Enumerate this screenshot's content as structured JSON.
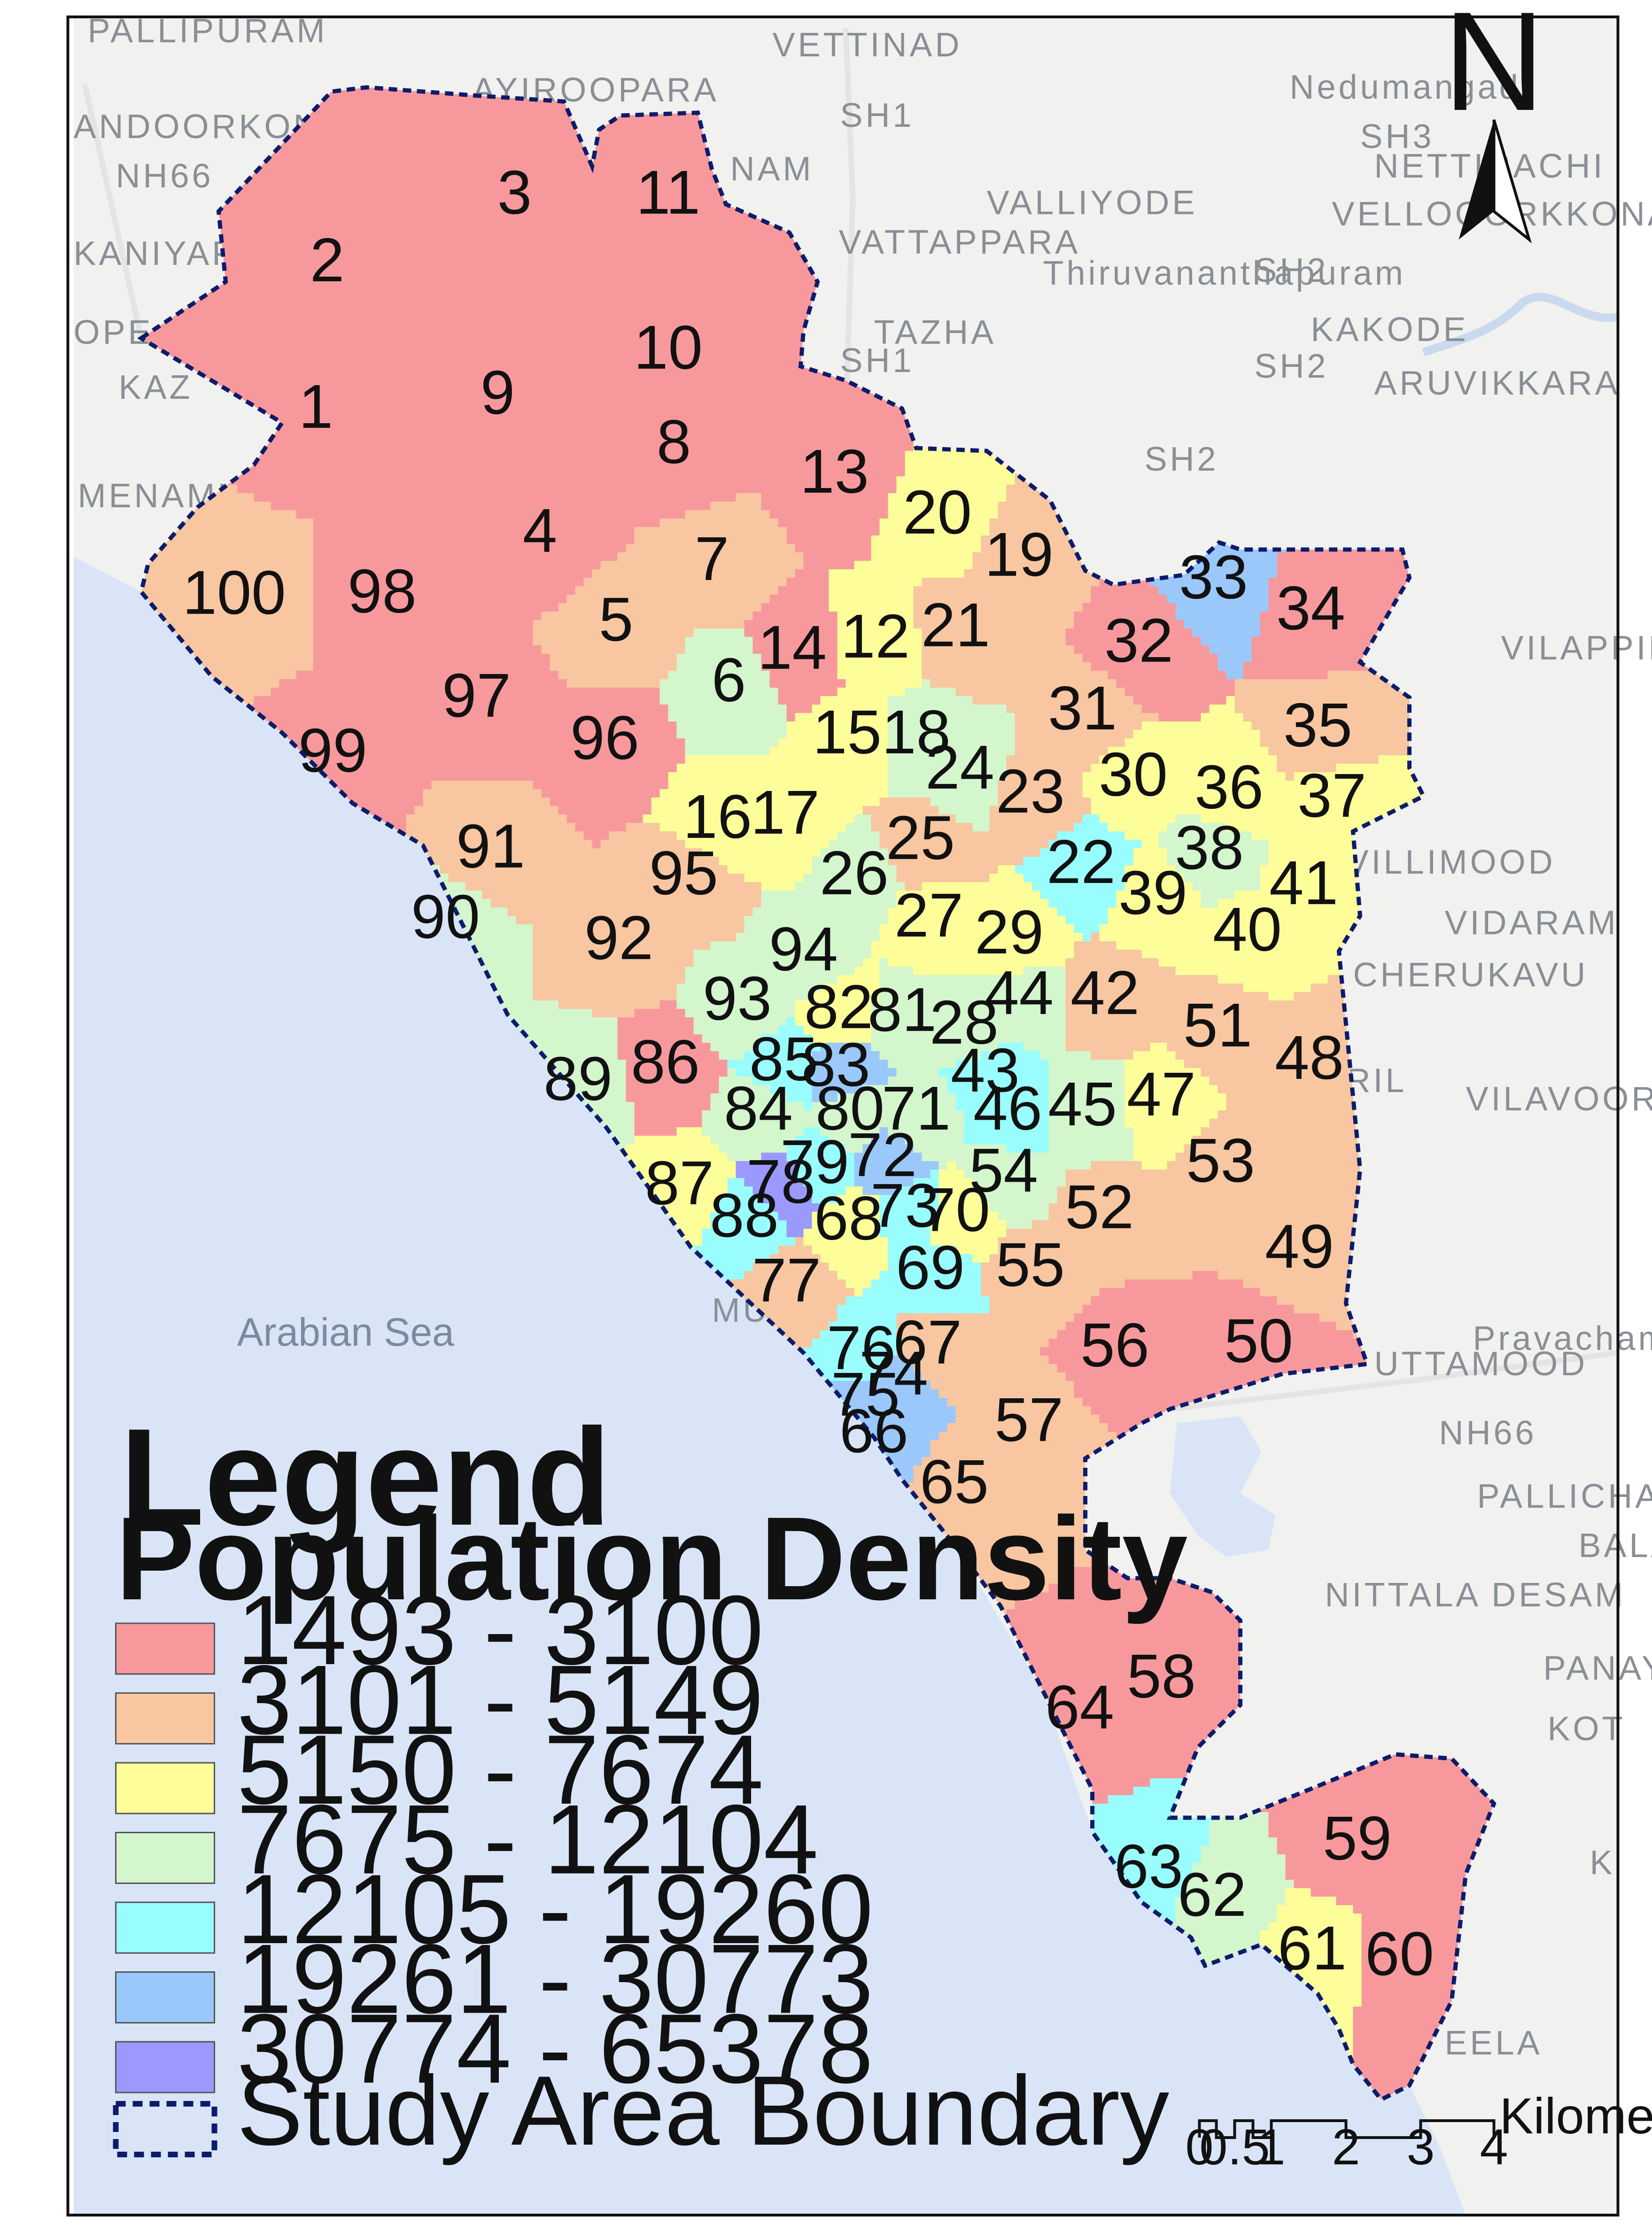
{
  "legend": {
    "title": "Legend",
    "subtitle": "Population Density",
    "classes": [
      {
        "label": "1493 - 3100",
        "color": "#f7999c"
      },
      {
        "label": "3101 - 5149",
        "color": "#f8c6a0"
      },
      {
        "label": "5150 - 7674",
        "color": "#fdfd99"
      },
      {
        "label": "7675 - 12104",
        "color": "#d3f6cd"
      },
      {
        "label": "12105 - 19260",
        "color": "#99fdfd"
      },
      {
        "label": "19261 - 30773",
        "color": "#9bc8fb"
      },
      {
        "label": "30774 - 65378",
        "color": "#9b99fd"
      }
    ],
    "boundary_label": "Study Area Boundary",
    "boundary_color": "#0c1c6c"
  },
  "north_arrow": {
    "label": "N"
  },
  "scale_bar": {
    "ticks": [
      "0",
      "0.5",
      "1",
      "2",
      "3",
      "4"
    ],
    "unit": "Kilometers"
  },
  "basemap": {
    "sea_label": "Arabian Sea",
    "sea_color": "#d9e5f7",
    "land_color": "#f1f1f0",
    "places": [
      "PALLIPURAM",
      "ANDOORKONAM",
      "AYIROOPARA",
      "VETTINAD",
      "NAM",
      "KANIYAPURAM",
      "VALLIYODE",
      "VATTAPPARA",
      "Thiruvananthapuram",
      "Nedumangad",
      "NETTIRACHI",
      "VELLOOORKKONAM",
      "KAKODE",
      "ARUVIKKARA",
      "MENAMKULAM",
      "VILAPPIL",
      "VILLIMOOD",
      "VIDARAM",
      "CHERUKAVU",
      "VILAVOORKKAL",
      "UTTAMOOD",
      "Pravachambalam",
      "PALLICHAL",
      "NITTALA DESAM",
      "PANAYA",
      "KOT",
      "K",
      "EELA",
      "TAZHA",
      "OPE",
      "KAZ",
      "RIL",
      "BALA",
      "MU",
      "SH1",
      "SH1",
      "SH2",
      "SH2",
      "SH2",
      "SH3",
      "NH66",
      "NH66"
    ]
  },
  "wards": [
    {
      "id": "1",
      "cls": 0
    },
    {
      "id": "2",
      "cls": 0
    },
    {
      "id": "3",
      "cls": 0
    },
    {
      "id": "4",
      "cls": 0
    },
    {
      "id": "5",
      "cls": 1
    },
    {
      "id": "6",
      "cls": 3
    },
    {
      "id": "7",
      "cls": 1
    },
    {
      "id": "8",
      "cls": 0
    },
    {
      "id": "9",
      "cls": 0
    },
    {
      "id": "10",
      "cls": 0
    },
    {
      "id": "11",
      "cls": 0
    },
    {
      "id": "12",
      "cls": 2
    },
    {
      "id": "13",
      "cls": 0
    },
    {
      "id": "14",
      "cls": 0
    },
    {
      "id": "15",
      "cls": 2
    },
    {
      "id": "16",
      "cls": 2
    },
    {
      "id": "17",
      "cls": 2
    },
    {
      "id": "18",
      "cls": 3
    },
    {
      "id": "19",
      "cls": 1
    },
    {
      "id": "20",
      "cls": 2
    },
    {
      "id": "21",
      "cls": 1
    },
    {
      "id": "22",
      "cls": 4
    },
    {
      "id": "23",
      "cls": 1
    },
    {
      "id": "24",
      "cls": 3
    },
    {
      "id": "25",
      "cls": 1
    },
    {
      "id": "26",
      "cls": 3
    },
    {
      "id": "27",
      "cls": 2
    },
    {
      "id": "28",
      "cls": 3
    },
    {
      "id": "29",
      "cls": 2
    },
    {
      "id": "30",
      "cls": 2
    },
    {
      "id": "31",
      "cls": 1
    },
    {
      "id": "32",
      "cls": 0
    },
    {
      "id": "33",
      "cls": 5
    },
    {
      "id": "34",
      "cls": 0
    },
    {
      "id": "35",
      "cls": 1
    },
    {
      "id": "36",
      "cls": 2
    },
    {
      "id": "37",
      "cls": 2
    },
    {
      "id": "38",
      "cls": 3
    },
    {
      "id": "39",
      "cls": 2
    },
    {
      "id": "40",
      "cls": 2
    },
    {
      "id": "41",
      "cls": 2
    },
    {
      "id": "42",
      "cls": 1
    },
    {
      "id": "43",
      "cls": 4
    },
    {
      "id": "44",
      "cls": 3
    },
    {
      "id": "45",
      "cls": 3
    },
    {
      "id": "46",
      "cls": 4
    },
    {
      "id": "47",
      "cls": 2
    },
    {
      "id": "48",
      "cls": 1
    },
    {
      "id": "49",
      "cls": 1
    },
    {
      "id": "50",
      "cls": 0
    },
    {
      "id": "51",
      "cls": 1
    },
    {
      "id": "52",
      "cls": 1
    },
    {
      "id": "53",
      "cls": 1
    },
    {
      "id": "54",
      "cls": 3
    },
    {
      "id": "55",
      "cls": 1
    },
    {
      "id": "56",
      "cls": 0
    },
    {
      "id": "57",
      "cls": 1
    },
    {
      "id": "58",
      "cls": 0
    },
    {
      "id": "59",
      "cls": 0
    },
    {
      "id": "60",
      "cls": 0
    },
    {
      "id": "61",
      "cls": 2
    },
    {
      "id": "62",
      "cls": 3
    },
    {
      "id": "63",
      "cls": 4
    },
    {
      "id": "64",
      "cls": 0
    },
    {
      "id": "65",
      "cls": 1
    },
    {
      "id": "66",
      "cls": 5
    },
    {
      "id": "67",
      "cls": 1
    },
    {
      "id": "68",
      "cls": 2
    },
    {
      "id": "69",
      "cls": 4
    },
    {
      "id": "70",
      "cls": 2
    },
    {
      "id": "71",
      "cls": 3
    },
    {
      "id": "72",
      "cls": 5
    },
    {
      "id": "73",
      "cls": 4
    },
    {
      "id": "74",
      "cls": 5
    },
    {
      "id": "75",
      "cls": 5
    },
    {
      "id": "76",
      "cls": 4
    },
    {
      "id": "77",
      "cls": 1
    },
    {
      "id": "78",
      "cls": 6
    },
    {
      "id": "79",
      "cls": 4
    },
    {
      "id": "80",
      "cls": 3
    },
    {
      "id": "81",
      "cls": 3
    },
    {
      "id": "82",
      "cls": 2
    },
    {
      "id": "83",
      "cls": 5
    },
    {
      "id": "84",
      "cls": 3
    },
    {
      "id": "85",
      "cls": 4
    },
    {
      "id": "86",
      "cls": 0
    },
    {
      "id": "87",
      "cls": 2
    },
    {
      "id": "88",
      "cls": 4
    },
    {
      "id": "89",
      "cls": 3
    },
    {
      "id": "90",
      "cls": 3
    },
    {
      "id": "91",
      "cls": 1
    },
    {
      "id": "92",
      "cls": 1
    },
    {
      "id": "93",
      "cls": 3
    },
    {
      "id": "94",
      "cls": 3
    },
    {
      "id": "95",
      "cls": 1
    },
    {
      "id": "96",
      "cls": 0
    },
    {
      "id": "97",
      "cls": 0
    },
    {
      "id": "98",
      "cls": 0
    },
    {
      "id": "99",
      "cls": 0
    },
    {
      "id": "100",
      "cls": 1
    }
  ]
}
